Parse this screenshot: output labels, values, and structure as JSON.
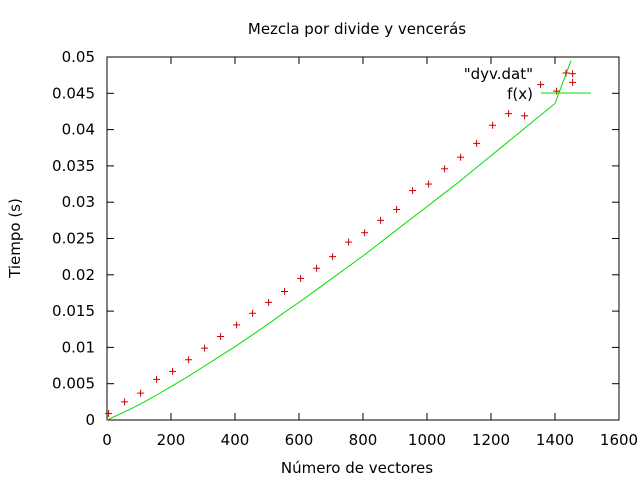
{
  "chart_data": {
    "type": "scatter",
    "title": "Mezcla por divide y vencerás",
    "xlabel": "Número de vectores",
    "ylabel": "Tiempo (s)",
    "xlim": [
      0,
      1600
    ],
    "ylim": [
      0,
      0.05
    ],
    "x_ticks": [
      0,
      200,
      400,
      600,
      800,
      1000,
      1200,
      1400,
      1600
    ],
    "x_tick_labels": [
      "0",
      "200",
      "400",
      "600",
      "800",
      "1000",
      "1200",
      "1400",
      "1600"
    ],
    "y_ticks": [
      0,
      0.005,
      0.01,
      0.015,
      0.02,
      0.025,
      0.03,
      0.035,
      0.04,
      0.045,
      0.05
    ],
    "y_tick_labels": [
      "0",
      "0.005",
      "0.01",
      "0.015",
      "0.02",
      "0.025",
      "0.03",
      "0.035",
      "0.04",
      "0.045",
      "0.05"
    ],
    "grid": false,
    "legend_position": "top-right",
    "series": [
      {
        "name": "\"dyv.dat\"",
        "style": "points",
        "marker": "plus",
        "color": "#cc0000",
        "x": [
          5,
          55,
          105,
          155,
          205,
          255,
          305,
          355,
          405,
          455,
          505,
          555,
          605,
          655,
          705,
          755,
          805,
          855,
          905,
          955,
          1005,
          1055,
          1105,
          1155,
          1205,
          1255,
          1305,
          1355,
          1405,
          1455,
          1455
        ],
        "y": [
          0.0009,
          0.0025,
          0.0037,
          0.0056,
          0.0067,
          0.0083,
          0.0099,
          0.0115,
          0.0131,
          0.0147,
          0.0162,
          0.0177,
          0.0195,
          0.0209,
          0.0225,
          0.0245,
          0.0258,
          0.0275,
          0.029,
          0.0316,
          0.0325,
          0.0346,
          0.0362,
          0.0381,
          0.0406,
          0.0422,
          0.0419,
          0.0462,
          0.0453,
          0.0477,
          0.0465
        ]
      },
      {
        "name": "f(x)",
        "style": "line",
        "color": "#00dd00",
        "x": [
          0,
          50,
          100,
          150,
          200,
          250,
          300,
          350,
          400,
          450,
          500,
          550,
          600,
          650,
          700,
          750,
          800,
          850,
          900,
          950,
          1000,
          1050,
          1100,
          1150,
          1200,
          1250,
          1300,
          1350,
          1400,
          1450
        ],
        "y": [
          0.0,
          0.001,
          0.0021,
          0.0033,
          0.0046,
          0.0059,
          0.0073,
          0.0087,
          0.0101,
          0.0116,
          0.0131,
          0.0147,
          0.0162,
          0.0178,
          0.0194,
          0.021,
          0.0226,
          0.0243,
          0.026,
          0.0277,
          0.0294,
          0.0311,
          0.0328,
          0.0346,
          0.0364,
          0.0382,
          0.04,
          0.0418,
          0.0436,
          0.0495
        ]
      }
    ]
  }
}
